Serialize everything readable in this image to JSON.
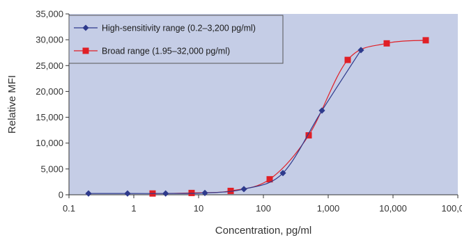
{
  "chart_data": {
    "type": "line",
    "title": "",
    "xlabel": "Concentration, pg/ml",
    "ylabel": "Relative MFI",
    "x_scale": "log",
    "xlim": [
      0.1,
      100000
    ],
    "ylim": [
      0,
      35000
    ],
    "x_ticks": [
      0.1,
      1,
      10,
      100,
      1000,
      10000,
      100000
    ],
    "x_tick_labels": [
      "0.1",
      "1",
      "10",
      "100",
      "1,000",
      "10,000",
      "100,000"
    ],
    "y_ticks": [
      0,
      5000,
      10000,
      15000,
      20000,
      25000,
      30000,
      35000
    ],
    "y_tick_labels": [
      "0",
      "5,000",
      "10,000",
      "15,000",
      "20,000",
      "25,000",
      "30,000",
      "35,000"
    ],
    "grid": false,
    "legend_position": "top-left",
    "plot_background": "#c5cde6",
    "series": [
      {
        "name": "High-sensitivity range (0.2–3,200 pg/ml)",
        "color": "#2e3a8c",
        "marker": "diamond",
        "x": [
          0.2,
          0.8,
          3.1,
          12.5,
          50,
          200,
          800,
          3200
        ],
        "y": [
          250,
          250,
          250,
          350,
          1100,
          4200,
          16300,
          28000
        ]
      },
      {
        "name": "Broad range (1.95–32,000 pg/ml)",
        "color": "#e01f26",
        "marker": "square",
        "x": [
          1.95,
          7.8,
          31.25,
          125,
          500,
          2000,
          8000,
          32000
        ],
        "y": [
          250,
          350,
          750,
          3000,
          11500,
          26100,
          29300,
          29900
        ]
      }
    ]
  }
}
